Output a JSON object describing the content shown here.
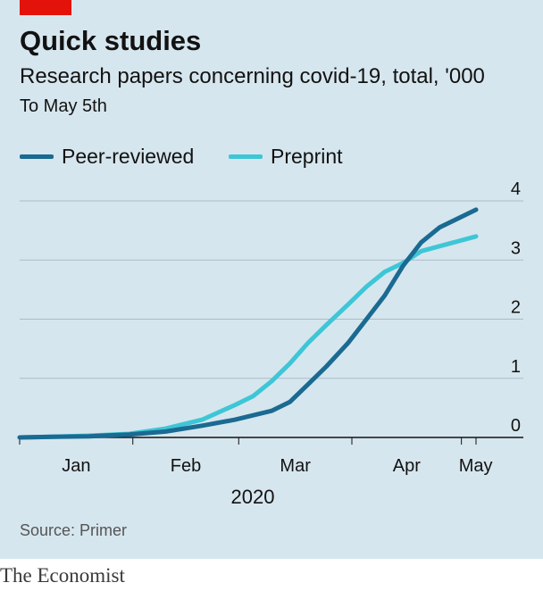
{
  "header": {
    "title": "Quick studies",
    "subtitle": "Research papers concerning covid-19, total, '000",
    "subtitle2": "To May 5th"
  },
  "footer": {
    "source": "Source: Primer",
    "brand": "The Economist"
  },
  "colors": {
    "brand_red": "#e3120b",
    "background": "#d6e6ee",
    "peer_reviewed": "#1a6a92",
    "preprint": "#3ec6d6"
  },
  "chart_data": {
    "type": "line",
    "title": "Quick studies",
    "subtitle": "Research papers concerning covid-19, total, '000",
    "xlabel": "2020",
    "ylabel": "",
    "x_ticks": [
      "Jan",
      "Feb",
      "Mar",
      "Apr",
      "May"
    ],
    "y_ticks": [
      "0",
      "1",
      "2",
      "3",
      "4"
    ],
    "ylim": [
      0,
      4
    ],
    "xlim": [
      "2020-01-01",
      "2020-05-05"
    ],
    "grid": true,
    "legend_position": "top-left",
    "series": [
      {
        "name": "Peer-reviewed",
        "color": "#1a6a92",
        "points": [
          [
            "2020-01-01",
            0.0
          ],
          [
            "2020-01-10",
            0.01
          ],
          [
            "2020-01-20",
            0.02
          ],
          [
            "2020-01-31",
            0.05
          ],
          [
            "2020-02-10",
            0.1
          ],
          [
            "2020-02-20",
            0.2
          ],
          [
            "2020-02-29",
            0.3
          ],
          [
            "2020-03-10",
            0.45
          ],
          [
            "2020-03-15",
            0.6
          ],
          [
            "2020-03-20",
            0.9
          ],
          [
            "2020-03-25",
            1.2
          ],
          [
            "2020-03-31",
            1.6
          ],
          [
            "2020-04-05",
            2.0
          ],
          [
            "2020-04-10",
            2.4
          ],
          [
            "2020-04-15",
            2.9
          ],
          [
            "2020-04-20",
            3.3
          ],
          [
            "2020-04-25",
            3.55
          ],
          [
            "2020-05-05",
            3.85
          ]
        ]
      },
      {
        "name": "Preprint",
        "color": "#3ec6d6",
        "points": [
          [
            "2020-01-01",
            0.0
          ],
          [
            "2020-01-10",
            0.01
          ],
          [
            "2020-01-20",
            0.03
          ],
          [
            "2020-01-31",
            0.06
          ],
          [
            "2020-02-10",
            0.15
          ],
          [
            "2020-02-20",
            0.3
          ],
          [
            "2020-02-29",
            0.55
          ],
          [
            "2020-03-05",
            0.7
          ],
          [
            "2020-03-10",
            0.95
          ],
          [
            "2020-03-15",
            1.25
          ],
          [
            "2020-03-20",
            1.6
          ],
          [
            "2020-03-25",
            1.9
          ],
          [
            "2020-03-31",
            2.25
          ],
          [
            "2020-04-05",
            2.55
          ],
          [
            "2020-04-10",
            2.8
          ],
          [
            "2020-04-15",
            2.95
          ],
          [
            "2020-04-20",
            3.15
          ],
          [
            "2020-05-05",
            3.4
          ]
        ]
      }
    ]
  }
}
